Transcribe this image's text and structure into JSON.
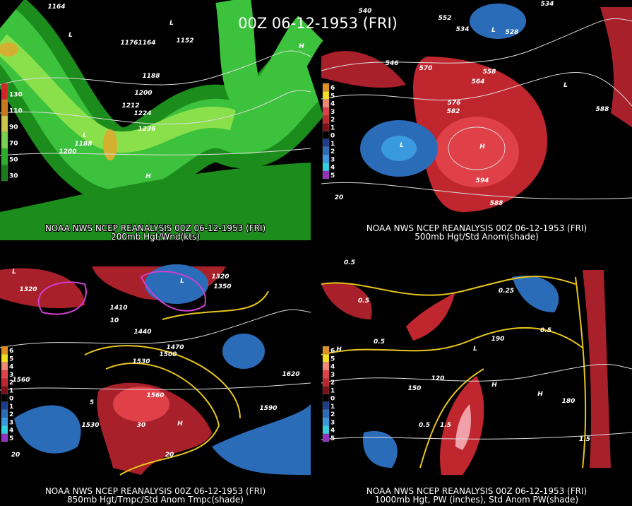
{
  "title": "00Z 06-12-1953 (FRI)",
  "panels": [
    {
      "source": "NOAA NWS NCEP REANALYSIS 00Z 06-12-1953 (FRI)",
      "caption": "200mb Hgt/Wnd(kts)",
      "legend": [
        130,
        110,
        90,
        70,
        50,
        30
      ],
      "labels": [
        "1164",
        "1176",
        "1164",
        "1152",
        "1188",
        "1200",
        "1212",
        "1224",
        "1236",
        "1200",
        "1188",
        "L",
        "L",
        "L",
        "H",
        "H"
      ]
    },
    {
      "source": "NOAA NWS NCEP REANALYSIS 00Z 06-12-1953 (FRI)",
      "caption": "500mb Hgt/Std Anom(shade)",
      "legend": [
        6,
        5,
        4,
        3,
        2,
        1,
        0,
        1,
        2,
        3,
        4,
        5
      ],
      "labels": [
        "540",
        "534",
        "552",
        "534",
        "528",
        "546",
        "570",
        "558",
        "564",
        "576",
        "582",
        "588",
        "594",
        "588",
        "20",
        "L",
        "L",
        "L",
        "H"
      ]
    },
    {
      "source": "NOAA NWS NCEP REANALYSIS 00Z 06-12-1953 (FRI)",
      "caption": "850mb Hgt/Tmpc/Std Anom Tmpc(shade)",
      "legend": [
        6,
        5,
        4,
        3,
        2,
        1,
        0,
        1,
        2,
        3,
        4,
        5
      ],
      "labels": [
        "1320",
        "1350",
        "1320",
        "1410",
        "1440",
        "1470",
        "1500",
        "1530",
        "1560",
        "1590",
        "1620",
        "1560",
        "1530",
        "10",
        "5",
        "30",
        "20",
        "20",
        "L",
        "L",
        "H"
      ]
    },
    {
      "source": "NOAA NWS NCEP REANALYSIS 00Z 06-12-1953 (FRI)",
      "caption": "1000mb Hgt, PW (inches), Std Anom PW(shade)",
      "legend": [
        6,
        5,
        4,
        3,
        2,
        1,
        0,
        1,
        2,
        3,
        4,
        5
      ],
      "labels": [
        "0.5",
        "0.5",
        "0.5",
        "0.25",
        "0.5",
        "1.5",
        "150",
        "120",
        "180",
        "190",
        "0.5",
        "1.5",
        "H",
        "H",
        "H",
        "L"
      ]
    }
  ]
}
